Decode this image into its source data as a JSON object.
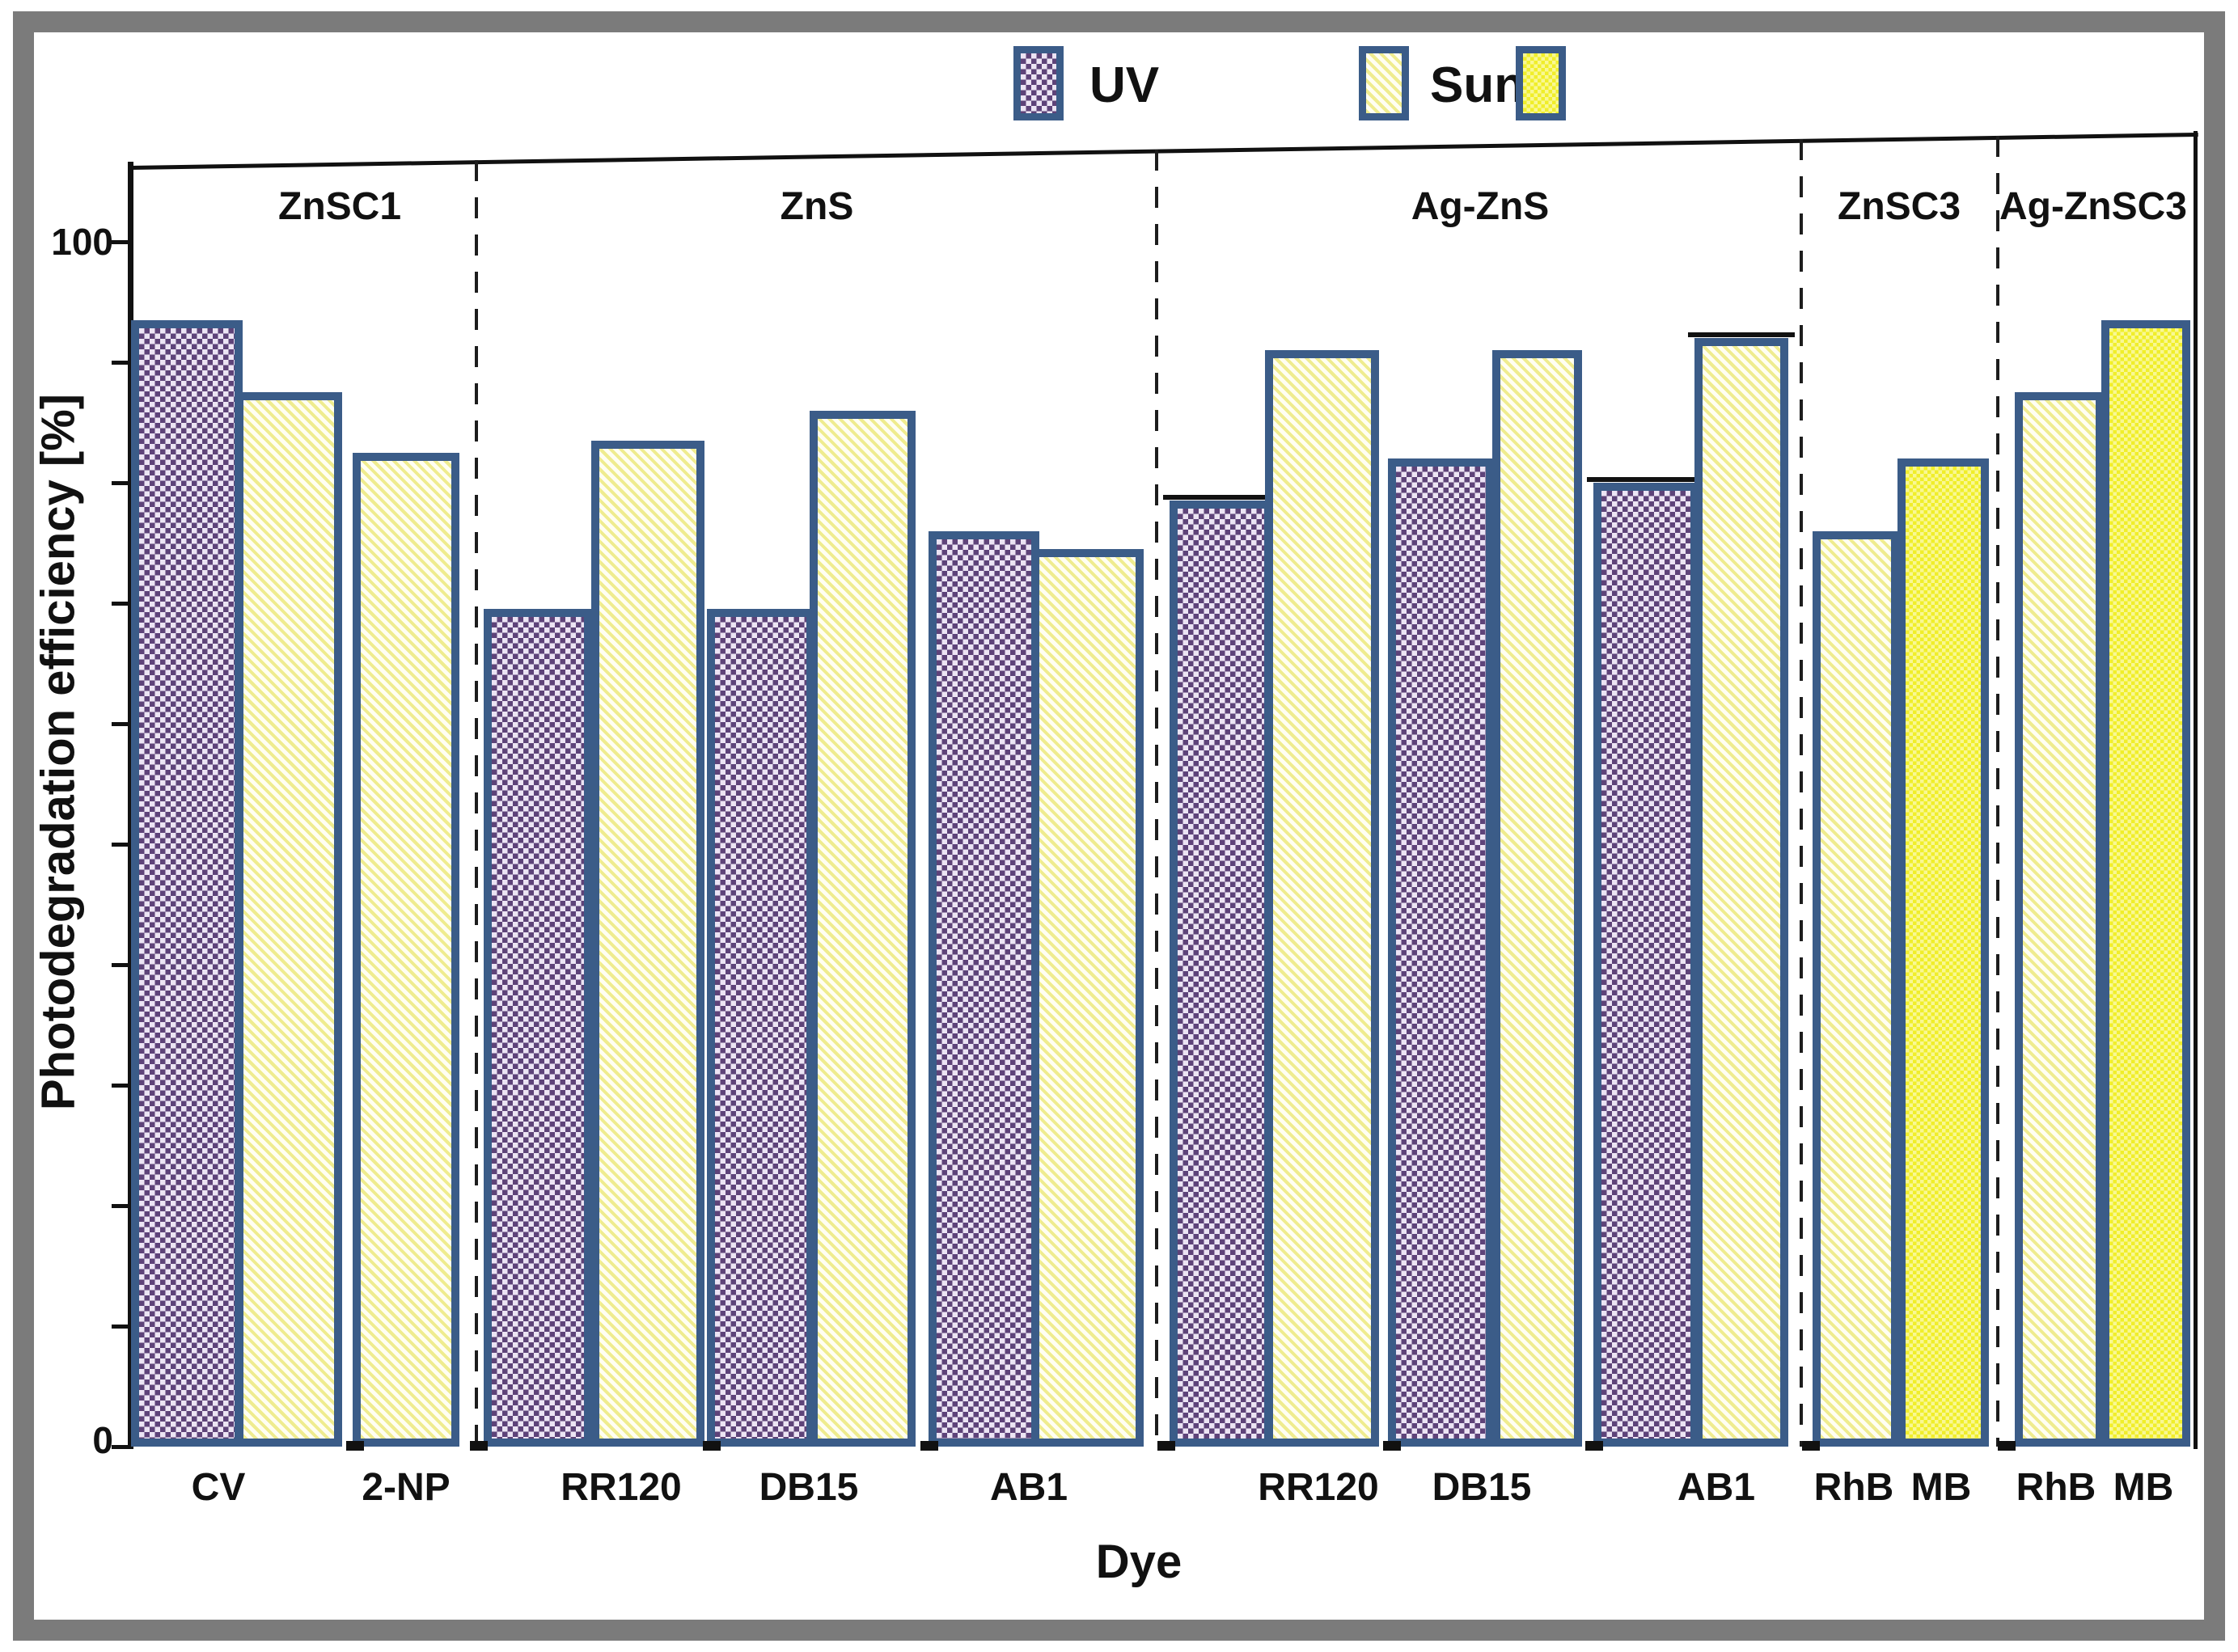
{
  "legend": {
    "items": [
      {
        "label": "UV",
        "style": "uv"
      },
      {
        "label": "Sun",
        "style": "sun"
      },
      {
        "label": "",
        "style": "sunsolid"
      }
    ]
  },
  "colors": {
    "bar_border": "#3b5c88",
    "uv_dark": "#5e4379",
    "uv_light": "#ece4f4",
    "sun_stripe": "#efec8f",
    "solid_yellow": "#f0ee2a",
    "frame_gray": "#7b7b7b"
  },
  "y_axis": {
    "title": "Photodegradation efficiency [%]",
    "labeled_ticks": [
      {
        "value": 100,
        "label": "100"
      },
      {
        "value": 0,
        "label": "0"
      }
    ],
    "min": 0,
    "max": 100,
    "minor_step": 10
  },
  "x_axis": {
    "title": "Dye",
    "tick_labels": [
      "CV",
      "2-NP",
      "RR120",
      "DB15",
      "AB1",
      "RR120",
      "DB15",
      "AB1",
      "RhB",
      "MB",
      "RhB",
      "MB"
    ]
  },
  "chart_data": {
    "type": "bar",
    "xlabel": "Dye",
    "ylabel": "Photodegradation efficiency [%]",
    "ylim": [
      0,
      100
    ],
    "grid": false,
    "legend_position": "top-center",
    "legend": [
      "UV",
      "Sun"
    ],
    "groups": [
      {
        "name": "ZnSC1",
        "bars": [
          {
            "dye": "CV",
            "series": "UV",
            "style": "uv",
            "value": 93.5
          },
          {
            "dye": "CV",
            "series": "Sun",
            "style": "sun",
            "value": 87.5
          },
          {
            "dye": "2-NP",
            "series": "Sun",
            "style": "sun",
            "value": 82.5
          }
        ]
      },
      {
        "name": "ZnS",
        "bars": [
          {
            "dye": "RR120",
            "series": "UV",
            "style": "uv",
            "value": 69.5
          },
          {
            "dye": "RR120",
            "series": "Sun",
            "style": "sun",
            "value": 83.5
          },
          {
            "dye": "DB15",
            "series": "UV",
            "style": "uv",
            "value": 69.5
          },
          {
            "dye": "DB15",
            "series": "Sun",
            "style": "sun",
            "value": 86
          },
          {
            "dye": "AB1",
            "series": "UV",
            "style": "uv",
            "value": 76
          },
          {
            "dye": "AB1",
            "series": "Sun",
            "style": "sun",
            "value": 74.5
          }
        ]
      },
      {
        "name": "Ag-ZnS",
        "bars": [
          {
            "dye": "RR120",
            "series": "UV",
            "style": "uv",
            "value": 78.5,
            "cap": true
          },
          {
            "dye": "RR120",
            "series": "Sun",
            "style": "sun",
            "value": 91
          },
          {
            "dye": "DB15",
            "series": "UV",
            "style": "uv",
            "value": 82
          },
          {
            "dye": "DB15",
            "series": "Sun",
            "style": "sun",
            "value": 91
          },
          {
            "dye": "AB1",
            "series": "UV",
            "style": "uv",
            "value": 80,
            "cap": true
          },
          {
            "dye": "AB1",
            "series": "Sun",
            "style": "sun",
            "value": 92,
            "cap": true
          }
        ]
      },
      {
        "name": "ZnSC3",
        "bars": [
          {
            "dye": "RhB",
            "series": "Sun",
            "style": "sun",
            "value": 76
          },
          {
            "dye": "MB",
            "series": "Sun",
            "style": "sunsolid",
            "value": 82
          }
        ]
      },
      {
        "name": "Ag-ZnSC3",
        "bars": [
          {
            "dye": "RhB",
            "series": "Sun",
            "style": "sun",
            "value": 87.5
          },
          {
            "dye": "MB",
            "series": "Sun",
            "style": "sunsolid",
            "value": 93.5
          }
        ]
      }
    ]
  }
}
